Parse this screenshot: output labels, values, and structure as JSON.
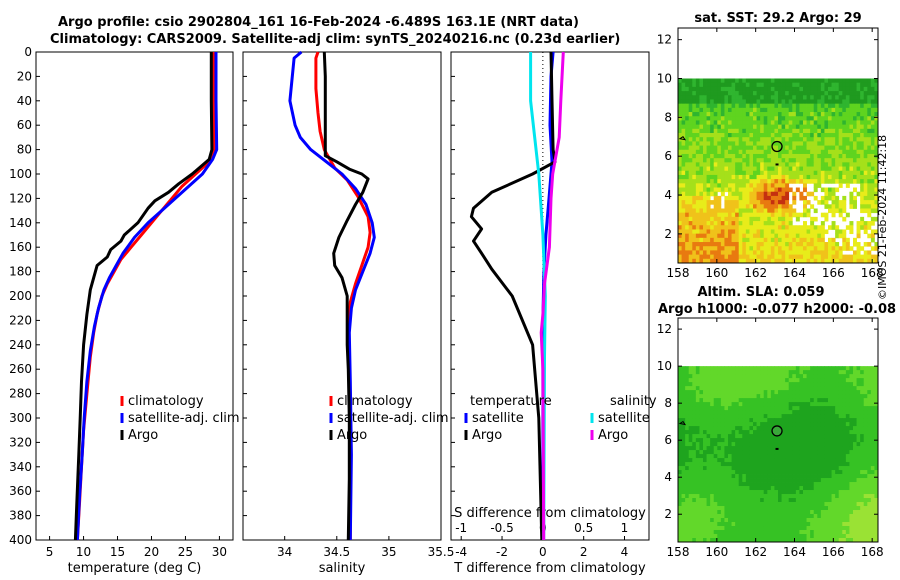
{
  "header": {
    "title_line1": "Argo profile: csio 2902804_161 16-Feb-2024 -6.489S 163.1E (NRT data)",
    "title_line2": "Climatology: CARS2009. Satellite-adj clim: synTS_20240216.nc (0.23d earlier)"
  },
  "stamp": "©IMOS 21-Feb-2024 11:42:18",
  "colors": {
    "climatology": "#ff0000",
    "satellite": "#0000ff",
    "argo": "#000000",
    "sat_diff": "#00e5ee",
    "argo_sal_diff": "#ee00ee",
    "sst_scale": [
      "#1f9a1f",
      "#2fb52f",
      "#5fd41f",
      "#a5e01a",
      "#e8ec1a",
      "#f0c21a",
      "#e87a10",
      "#c43010",
      "#8a1a0a"
    ],
    "sla_scale": [
      "#1ea41e",
      "#36c224",
      "#62d82a",
      "#9ae234",
      "#b8e83a"
    ]
  },
  "chart_data": [
    {
      "type": "line",
      "name": "temperature-panel",
      "xlabel": "temperature (deg C)",
      "ylabel": "depth",
      "xlim": [
        3,
        32
      ],
      "ylim": [
        0,
        400
      ],
      "xticks": [
        5,
        10,
        15,
        20,
        25,
        30
      ],
      "yticks": [
        0,
        20,
        40,
        60,
        80,
        100,
        120,
        140,
        160,
        180,
        200,
        220,
        240,
        260,
        280,
        300,
        320,
        340,
        360,
        380,
        400
      ],
      "legend": [
        "climatology",
        "satellite-adj. clim",
        "Argo"
      ],
      "series": [
        {
          "name": "climatology",
          "color": "#ff0000",
          "points": [
            [
              29.1,
              0
            ],
            [
              29.1,
              40
            ],
            [
              29.2,
              80
            ],
            [
              28.5,
              90
            ],
            [
              26.5,
              100
            ],
            [
              24.5,
              110
            ],
            [
              23,
              120
            ],
            [
              21.5,
              130
            ],
            [
              20,
              140
            ],
            [
              18.5,
              150
            ],
            [
              17,
              160
            ],
            [
              15.5,
              170
            ],
            [
              14.5,
              180
            ],
            [
              13.5,
              190
            ],
            [
              12.7,
              200
            ],
            [
              12,
              215
            ],
            [
              11.5,
              230
            ],
            [
              11,
              250
            ],
            [
              10.5,
              280
            ],
            [
              10,
              310
            ],
            [
              9.7,
              340
            ],
            [
              9.4,
              370
            ],
            [
              9.1,
              400
            ]
          ]
        },
        {
          "name": "satellite-adj. clim",
          "color": "#0000ff",
          "points": [
            [
              29.5,
              0
            ],
            [
              29.5,
              40
            ],
            [
              29.6,
              80
            ],
            [
              29,
              88
            ],
            [
              27.5,
              100
            ],
            [
              25.5,
              110
            ],
            [
              23.5,
              120
            ],
            [
              21.5,
              130
            ],
            [
              19.5,
              140
            ],
            [
              17.5,
              152
            ],
            [
              15.8,
              165
            ],
            [
              14.8,
              175
            ],
            [
              13.8,
              185
            ],
            [
              13,
              195
            ],
            [
              12.2,
              210
            ],
            [
              11.6,
              225
            ],
            [
              11,
              245
            ],
            [
              10.5,
              270
            ],
            [
              10.1,
              300
            ],
            [
              9.8,
              330
            ],
            [
              9.4,
              365
            ],
            [
              9.1,
              400
            ]
          ]
        },
        {
          "name": "Argo",
          "color": "#000000",
          "points": [
            [
              28.8,
              0
            ],
            [
              28.8,
              40
            ],
            [
              28.9,
              80
            ],
            [
              28.5,
              88
            ],
            [
              26,
              100
            ],
            [
              24,
              108
            ],
            [
              22.5,
              115
            ],
            [
              20.5,
              122
            ],
            [
              19.5,
              128
            ],
            [
              18,
              140
            ],
            [
              16,
              150
            ],
            [
              15.5,
              155
            ],
            [
              14,
              162
            ],
            [
              13.5,
              168
            ],
            [
              12,
              175
            ],
            [
              11.5,
              185
            ],
            [
              11,
              195
            ],
            [
              10.5,
              215
            ],
            [
              10,
              240
            ],
            [
              9.7,
              270
            ],
            [
              9.5,
              300
            ],
            [
              9.3,
              330
            ],
            [
              9,
              370
            ],
            [
              8.8,
              400
            ]
          ]
        }
      ]
    },
    {
      "type": "line",
      "name": "salinity-panel",
      "xlabel": "salinity",
      "xlim": [
        33.6,
        35.5
      ],
      "ylim": [
        0,
        400
      ],
      "xticks": [
        34,
        34.5,
        35,
        35.5
      ],
      "legend": [
        "climatology",
        "satellite-adj. clim",
        "Argo"
      ],
      "series": [
        {
          "name": "climatology",
          "color": "#ff0000",
          "points": [
            [
              34.32,
              0
            ],
            [
              34.3,
              5
            ],
            [
              34.3,
              30
            ],
            [
              34.32,
              50
            ],
            [
              34.34,
              65
            ],
            [
              34.38,
              80
            ],
            [
              34.48,
              95
            ],
            [
              34.6,
              105
            ],
            [
              34.7,
              118
            ],
            [
              34.8,
              135
            ],
            [
              34.82,
              148
            ],
            [
              34.8,
              160
            ],
            [
              34.74,
              175
            ],
            [
              34.68,
              190
            ],
            [
              34.63,
              205
            ],
            [
              34.61,
              230
            ],
            [
              34.62,
              260
            ],
            [
              34.63,
              300
            ],
            [
              34.63,
              350
            ],
            [
              34.63,
              400
            ]
          ]
        },
        {
          "name": "satellite-adj. clim",
          "color": "#0000ff",
          "points": [
            [
              34.16,
              0
            ],
            [
              34.09,
              5
            ],
            [
              34.05,
              40
            ],
            [
              34.1,
              60
            ],
            [
              34.15,
              70
            ],
            [
              34.25,
              80
            ],
            [
              34.4,
              90
            ],
            [
              34.55,
              100
            ],
            [
              34.68,
              112
            ],
            [
              34.78,
              125
            ],
            [
              34.84,
              140
            ],
            [
              34.86,
              152
            ],
            [
              34.82,
              165
            ],
            [
              34.75,
              180
            ],
            [
              34.68,
              195
            ],
            [
              34.64,
              210
            ],
            [
              34.62,
              230
            ],
            [
              34.63,
              270
            ],
            [
              34.64,
              330
            ],
            [
              34.63,
              400
            ]
          ]
        },
        {
          "name": "Argo",
          "color": "#000000",
          "points": [
            [
              34.38,
              0
            ],
            [
              34.39,
              20
            ],
            [
              34.39,
              60
            ],
            [
              34.39,
              85
            ],
            [
              34.5,
              90
            ],
            [
              34.62,
              96
            ],
            [
              34.74,
              100
            ],
            [
              34.8,
              104
            ],
            [
              34.75,
              115
            ],
            [
              34.68,
              125
            ],
            [
              34.6,
              138
            ],
            [
              34.52,
              152
            ],
            [
              34.47,
              165
            ],
            [
              34.48,
              175
            ],
            [
              34.55,
              185
            ],
            [
              34.6,
              200
            ],
            [
              34.6,
              240
            ],
            [
              34.61,
              260
            ],
            [
              34.62,
              300
            ],
            [
              34.62,
              350
            ],
            [
              34.61,
              400
            ]
          ]
        }
      ]
    },
    {
      "type": "line",
      "name": "difference-panel",
      "xlabel": "T difference from climatology",
      "top_xlabel": "S difference from climatology",
      "xlim": [
        -4.5,
        5.2
      ],
      "ylim": [
        0,
        400
      ],
      "xticks": [
        -4,
        -2,
        0,
        2,
        4
      ],
      "top_xticks": [
        -1,
        -0.5,
        0,
        0.5,
        1
      ],
      "top_xtick_labels": [
        "-1",
        "-0.5",
        "0",
        "0.5",
        "1"
      ],
      "legend_titles": [
        "temperature",
        "salinity"
      ],
      "legend": [
        "satellite",
        "Argo",
        "satellite",
        "Argo"
      ],
      "series": [
        {
          "name": "T satellite",
          "color": "#0000ff",
          "points": [
            [
              0.5,
              0
            ],
            [
              0.4,
              20
            ],
            [
              0.35,
              60
            ],
            [
              0.45,
              90
            ],
            [
              0.4,
              100
            ],
            [
              0.3,
              120
            ],
            [
              0.15,
              150
            ],
            [
              0.05,
              180
            ],
            [
              0,
              220
            ],
            [
              0,
              400
            ]
          ]
        },
        {
          "name": "T Argo",
          "color": "#000000",
          "points": [
            [
              0.4,
              0
            ],
            [
              0.45,
              40
            ],
            [
              0.5,
              80
            ],
            [
              0.6,
              90
            ],
            [
              -0.5,
              100
            ],
            [
              -2.5,
              115
            ],
            [
              -3.4,
              128
            ],
            [
              -3.5,
              135
            ],
            [
              -3,
              145
            ],
            [
              -3.4,
              155
            ],
            [
              -3,
              165
            ],
            [
              -2.5,
              178
            ],
            [
              -1.5,
              200
            ],
            [
              -0.5,
              240
            ],
            [
              -0.2,
              300
            ],
            [
              -0.05,
              400
            ]
          ]
        },
        {
          "name": "S satellite",
          "color": "#00e5ee",
          "points": [
            [
              -0.15,
              0
            ],
            [
              -0.15,
              40
            ],
            [
              -0.1,
              70
            ],
            [
              -0.05,
              100
            ],
            [
              0,
              150
            ],
            [
              0.03,
              200
            ],
            [
              0.02,
              250
            ],
            [
              0.01,
              400
            ]
          ]
        },
        {
          "name": "S Argo",
          "color": "#ee00ee",
          "points": [
            [
              0.25,
              0
            ],
            [
              0.22,
              40
            ],
            [
              0.2,
              70
            ],
            [
              0.12,
              100
            ],
            [
              0.1,
              120
            ],
            [
              0.08,
              160
            ],
            [
              0.02,
              190
            ],
            [
              0,
              215
            ],
            [
              -0.02,
              230
            ],
            [
              0,
              260
            ],
            [
              0.01,
              400
            ]
          ]
        }
      ]
    },
    {
      "type": "heatmap",
      "name": "sst-map",
      "title": "sat. SST: 29.2 Argo: 29",
      "xlim": [
        158,
        168.3
      ],
      "ylim": [
        0.5,
        12.6
      ],
      "xticks": [
        158,
        160,
        162,
        164,
        166,
        168
      ],
      "yticks": [
        2,
        4,
        6,
        8,
        10,
        12
      ],
      "data_extent_lat_max": 10,
      "argo_position": [
        163.1,
        6.5
      ]
    },
    {
      "type": "heatmap",
      "name": "sla-map",
      "title": "Altim. SLA: 0.059",
      "subtitle": "Argo h1000: -0.077 h2000: -0.08",
      "xlim": [
        158,
        168.3
      ],
      "ylim": [
        0.5,
        12.6
      ],
      "xticks": [
        158,
        160,
        162,
        164,
        166,
        168
      ],
      "yticks": [
        2,
        4,
        6,
        8,
        10,
        12
      ],
      "data_extent_lat_max": 10,
      "argo_position": [
        163.1,
        6.5
      ]
    }
  ]
}
